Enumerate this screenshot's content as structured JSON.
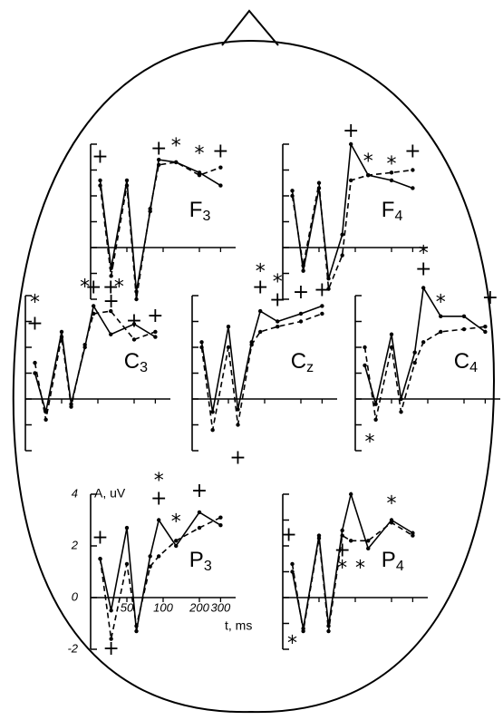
{
  "chart_data": [
    {
      "type": "line",
      "title": "F",
      "title_sub": "3",
      "x": [
        30,
        37,
        50,
        60,
        78,
        92,
        128,
        200,
        300
      ],
      "xscale": "log",
      "xlim": [
        25,
        400
      ],
      "ylim": [
        -2,
        4
      ],
      "xticks": [
        50,
        100,
        200,
        300
      ],
      "yticks": [
        -2,
        -1,
        0,
        1,
        2,
        3,
        4
      ],
      "tick_labels": false,
      "series": [
        {
          "style": "solid",
          "color": "#000000",
          "values": [
            2.6,
            -0.8,
            2.6,
            -1.7,
            1.4,
            3.4,
            3.3,
            2.9,
            2.4
          ]
        },
        {
          "style": "dashed",
          "color": "#000000",
          "values": [
            2.4,
            -1.1,
            2.4,
            -2.0,
            1.5,
            3.2,
            3.3,
            2.8,
            3.1
          ]
        }
      ],
      "annotations": [
        {
          "text": "+",
          "x": 30,
          "y": 3.5
        },
        {
          "text": "+",
          "x": 37,
          "y": -2.1
        },
        {
          "text": "+",
          "x": 92,
          "y": 3.8
        },
        {
          "text": "*",
          "x": 128,
          "y": 3.9
        },
        {
          "text": "*",
          "x": 200,
          "y": 3.6
        },
        {
          "text": "+",
          "x": 300,
          "y": 3.7
        }
      ]
    },
    {
      "type": "line",
      "title": "F",
      "title_sub": "4",
      "x": [
        30,
        37,
        50,
        60,
        78,
        92,
        128,
        200,
        300
      ],
      "xscale": "log",
      "xlim": [
        25,
        400
      ],
      "ylim": [
        -2,
        4
      ],
      "xticks": [
        50,
        100,
        200,
        300
      ],
      "yticks": [
        -2,
        -1,
        0,
        1,
        2,
        3,
        4
      ],
      "tick_labels": false,
      "series": [
        {
          "style": "solid",
          "color": "#000000",
          "values": [
            2.2,
            -0.9,
            2.3,
            -1.2,
            0.5,
            4.0,
            2.8,
            2.6,
            2.3
          ]
        },
        {
          "style": "dashed",
          "color": "#000000",
          "values": [
            2.0,
            -0.7,
            2.5,
            -1.6,
            -0.3,
            2.6,
            2.8,
            2.9,
            3.0
          ]
        }
      ],
      "annotations": [
        {
          "text": "+",
          "x": 92,
          "y": 4.5
        },
        {
          "text": "*",
          "x": 128,
          "y": 3.3
        },
        {
          "text": "*",
          "x": 200,
          "y": 3.2
        },
        {
          "text": "+",
          "x": 300,
          "y": 3.7
        }
      ]
    },
    {
      "type": "line",
      "title": "C",
      "title_sub": "3",
      "x": [
        30,
        37,
        50,
        60,
        78,
        92,
        128,
        200,
        300
      ],
      "xscale": "log",
      "xlim": [
        25,
        400
      ],
      "ylim": [
        -2,
        4
      ],
      "xticks": [
        50,
        100,
        200,
        300
      ],
      "yticks": [
        -2,
        -1,
        0,
        1,
        2,
        3,
        4
      ],
      "tick_labels": false,
      "series": [
        {
          "style": "solid",
          "color": "#000000",
          "values": [
            1.0,
            -0.5,
            2.6,
            -0.2,
            2.0,
            3.6,
            2.5,
            2.9,
            2.4
          ]
        },
        {
          "style": "dashed",
          "color": "#000000",
          "values": [
            1.4,
            -0.8,
            2.4,
            -0.3,
            2.1,
            3.3,
            3.4,
            2.3,
            2.6
          ]
        }
      ],
      "annotations": [
        {
          "text": "*",
          "x": 30,
          "y": 3.7
        },
        {
          "text": "+",
          "x": 30,
          "y": 2.9
        },
        {
          "text": "*",
          "x": 78,
          "y": 4.3
        },
        {
          "text": "+",
          "x": 92,
          "y": 4.3
        },
        {
          "text": "+",
          "x": 128,
          "y": 4.3
        },
        {
          "text": "*",
          "x": 150,
          "y": 4.3
        },
        {
          "text": "+",
          "x": 200,
          "y": 3.0
        },
        {
          "text": "+",
          "x": 300,
          "y": 3.2
        }
      ]
    },
    {
      "type": "line",
      "title": "C",
      "title_sub": "z",
      "x": [
        30,
        37,
        50,
        60,
        78,
        92,
        128,
        200,
        300
      ],
      "xscale": "log",
      "xlim": [
        25,
        400
      ],
      "ylim": [
        -2,
        4
      ],
      "xticks": [
        50,
        100,
        200,
        300
      ],
      "yticks": [
        -2,
        -1,
        0,
        1,
        2,
        3,
        4
      ],
      "tick_labels": false,
      "series": [
        {
          "style": "solid",
          "color": "#000000",
          "values": [
            2.2,
            -0.5,
            2.8,
            -0.4,
            2.2,
            3.4,
            3.0,
            3.3,
            3.6
          ]
        },
        {
          "style": "dashed",
          "color": "#000000",
          "values": [
            2.0,
            -1.2,
            2.0,
            -1.0,
            2.1,
            2.6,
            2.8,
            3.0,
            3.3
          ]
        }
      ],
      "annotations": [
        {
          "text": "+",
          "x": 60,
          "y": -2.3
        },
        {
          "text": "*",
          "x": 92,
          "y": 4.9
        },
        {
          "text": "+",
          "x": 92,
          "y": 4.3
        },
        {
          "text": "*",
          "x": 128,
          "y": 4.5
        },
        {
          "text": "+",
          "x": 128,
          "y": 3.8
        },
        {
          "text": "+",
          "x": 200,
          "y": 4.1
        },
        {
          "text": "+",
          "x": 300,
          "y": 4.2
        }
      ]
    },
    {
      "type": "line",
      "title": "C",
      "title_sub": "4",
      "x": [
        30,
        37,
        50,
        60,
        78,
        92,
        128,
        200,
        300
      ],
      "xscale": "log",
      "xlim": [
        25,
        400
      ],
      "ylim": [
        -2,
        4
      ],
      "xticks": [
        50,
        100,
        200,
        300
      ],
      "yticks": [
        -2,
        -1,
        0,
        1,
        2,
        3,
        4
      ],
      "tick_labels": false,
      "series": [
        {
          "style": "solid",
          "color": "#000000",
          "values": [
            1.3,
            -0.2,
            2.5,
            0.0,
            1.8,
            4.3,
            3.2,
            3.2,
            2.6
          ]
        },
        {
          "style": "dashed",
          "color": "#000000",
          "values": [
            2.0,
            -0.8,
            2.0,
            -0.5,
            1.4,
            2.2,
            2.6,
            2.7,
            2.8
          ]
        }
      ],
      "annotations": [
        {
          "text": "*",
          "x": 33,
          "y": -1.7
        },
        {
          "text": "*",
          "x": 92,
          "y": 5.6
        },
        {
          "text": "+",
          "x": 92,
          "y": 5.0
        },
        {
          "text": "*",
          "x": 128,
          "y": 3.7
        },
        {
          "text": "+",
          "x": 330,
          "y": 3.9
        }
      ]
    },
    {
      "type": "line",
      "title": "P",
      "title_sub": "3",
      "y_label": "A, uV",
      "x_label": "t, ms",
      "x": [
        30,
        37,
        50,
        60,
        78,
        92,
        128,
        200,
        300
      ],
      "xscale": "log",
      "xlim": [
        25,
        400
      ],
      "ylim": [
        -2,
        4
      ],
      "xticks": [
        50,
        100,
        200,
        300
      ],
      "yticks": [
        -2,
        0,
        2,
        4
      ],
      "tick_labels": true,
      "series": [
        {
          "style": "solid",
          "color": "#000000",
          "values": [
            1.5,
            -0.5,
            2.7,
            -1.3,
            1.6,
            3.0,
            2.0,
            3.3,
            2.8
          ]
        },
        {
          "style": "dashed",
          "color": "#000000",
          "values": [
            1.5,
            -1.6,
            1.3,
            -1.1,
            1.2,
            1.6,
            2.2,
            2.7,
            3.1
          ]
        }
      ],
      "annotations": [
        {
          "text": "+",
          "x": 30,
          "y": 2.3
        },
        {
          "text": "+",
          "x": 37,
          "y": -2.0
        },
        {
          "text": "*",
          "x": 92,
          "y": 4.5
        },
        {
          "text": "+",
          "x": 92,
          "y": 3.8
        },
        {
          "text": "*",
          "x": 128,
          "y": 2.9
        },
        {
          "text": "+",
          "x": 200,
          "y": 4.1
        }
      ]
    },
    {
      "type": "line",
      "title": "P",
      "title_sub": "4",
      "x": [
        30,
        37,
        50,
        60,
        78,
        92,
        128,
        200,
        300
      ],
      "xscale": "log",
      "xlim": [
        25,
        400
      ],
      "ylim": [
        -2,
        4
      ],
      "xticks": [
        50,
        100,
        200,
        300
      ],
      "yticks": [
        -2,
        -1,
        0,
        1,
        2,
        3,
        4
      ],
      "tick_labels": false,
      "series": [
        {
          "style": "solid",
          "color": "#000000",
          "values": [
            1.0,
            -1.2,
            2.4,
            -1.1,
            2.6,
            4.0,
            1.9,
            3.0,
            2.5
          ]
        },
        {
          "style": "dashed",
          "color": "#000000",
          "values": [
            1.3,
            -1.3,
            2.3,
            -1.3,
            2.4,
            2.2,
            2.2,
            2.9,
            2.4
          ]
        }
      ],
      "annotations": [
        {
          "text": "+",
          "x": 28,
          "y": 2.4
        },
        {
          "text": "*",
          "x": 30,
          "y": -1.8
        },
        {
          "text": "+",
          "x": 78,
          "y": 1.8
        },
        {
          "text": "*",
          "x": 78,
          "y": 1.1
        },
        {
          "text": "*",
          "x": 110,
          "y": 1.1
        },
        {
          "text": "*",
          "x": 200,
          "y": 3.6
        }
      ]
    }
  ]
}
